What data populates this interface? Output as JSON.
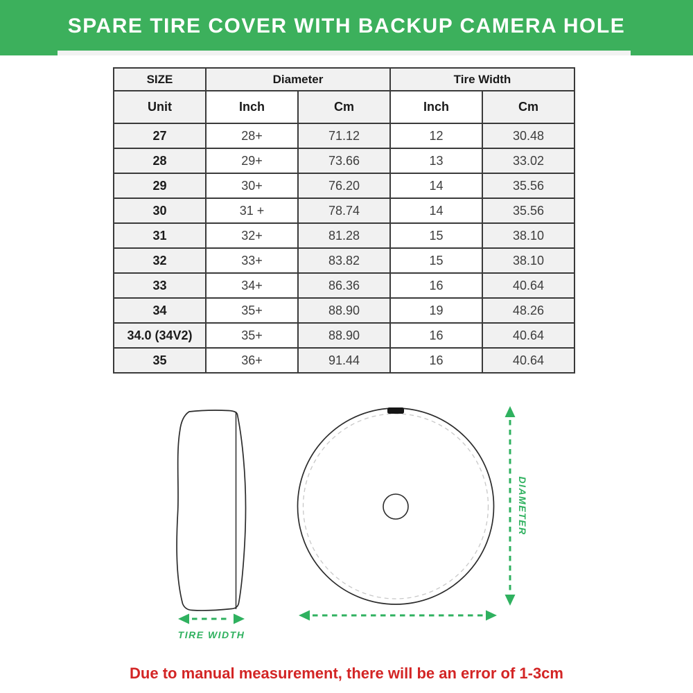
{
  "banner": {
    "title": "SPARE TIRE COVER WITH BACKUP CAMERA HOLE"
  },
  "table": {
    "header": {
      "size": "SIZE",
      "diameter": "Diameter",
      "tire_width": "Tire Width",
      "unit": "Unit",
      "diameter_inch": "Inch",
      "diameter_cm": "Cm",
      "width_inch": "Inch",
      "width_cm": "Cm"
    },
    "rows": [
      [
        "27",
        "28+",
        "71.12",
        "12",
        "30.48"
      ],
      [
        "28",
        "29+",
        "73.66",
        "13",
        "33.02"
      ],
      [
        "29",
        "30+",
        "76.20",
        "14",
        "35.56"
      ],
      [
        "30",
        "31 +",
        "78.74",
        "14",
        "35.56"
      ],
      [
        "31",
        "32+",
        "81.28",
        "15",
        "38.10"
      ],
      [
        "32",
        "33+",
        "83.82",
        "15",
        "38.10"
      ],
      [
        "33",
        "34+",
        "86.36",
        "16",
        "40.64"
      ],
      [
        "34",
        "35+",
        "88.90",
        "19",
        "48.26"
      ],
      [
        "34.0 (34V2)",
        "35+",
        "88.90",
        "16",
        "40.64"
      ],
      [
        "35",
        "36+",
        "91.44",
        "16",
        "40.64"
      ]
    ]
  },
  "diagram": {
    "tire_width_label": "TIRE WIDTH",
    "diameter_label": "DIAMETER"
  },
  "note": {
    "text": "Due to manual measurement, there will be an error of 1-3cm"
  },
  "colors": {
    "banner-green": "#3cb05c",
    "arrow-green": "#2fb15f",
    "note-red": "#d32525",
    "border-dark": "#3a3a3a",
    "cell-gray": "#f1f1f1"
  },
  "chart_data": {
    "type": "table",
    "title": "SPARE TIRE COVER WITH BACKUP CAMERA HOLE",
    "columns": [
      "Size (Unit)",
      "Diameter Inch",
      "Diameter Cm",
      "Tire Width Inch",
      "Tire Width Cm"
    ],
    "rows": [
      [
        "27",
        "28+",
        "71.12",
        "12",
        "30.48"
      ],
      [
        "28",
        "29+",
        "73.66",
        "13",
        "33.02"
      ],
      [
        "29",
        "30+",
        "76.20",
        "14",
        "35.56"
      ],
      [
        "30",
        "31 +",
        "78.74",
        "14",
        "35.56"
      ],
      [
        "31",
        "32+",
        "81.28",
        "15",
        "38.10"
      ],
      [
        "32",
        "33+",
        "83.82",
        "15",
        "38.10"
      ],
      [
        "33",
        "34+",
        "86.36",
        "16",
        "40.64"
      ],
      [
        "34",
        "35+",
        "88.90",
        "19",
        "48.26"
      ],
      [
        "34.0 (34V2)",
        "35+",
        "88.90",
        "16",
        "40.64"
      ],
      [
        "35",
        "36+",
        "91.44",
        "16",
        "40.64"
      ]
    ]
  }
}
